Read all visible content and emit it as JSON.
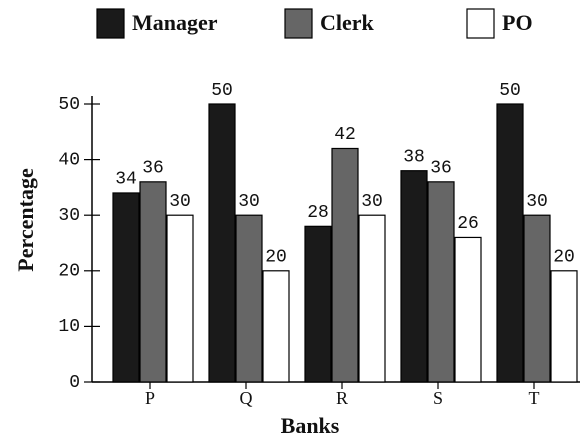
{
  "chart_data": {
    "type": "bar",
    "categories": [
      "P",
      "Q",
      "R",
      "S",
      "T"
    ],
    "series": [
      {
        "name": "Manager",
        "color": "#1a1a1a",
        "values": [
          34,
          50,
          28,
          38,
          50
        ]
      },
      {
        "name": "Clerk",
        "color": "#666666",
        "values": [
          36,
          30,
          42,
          36,
          30
        ]
      },
      {
        "name": "PO",
        "color": "#ffffff",
        "values": [
          30,
          20,
          30,
          26,
          20
        ]
      }
    ],
    "x_label": "Banks",
    "y_label": "Percentage",
    "ylim": [
      0,
      50
    ],
    "yticks": [
      0,
      10,
      20,
      30,
      40,
      50
    ],
    "legend": "top"
  }
}
